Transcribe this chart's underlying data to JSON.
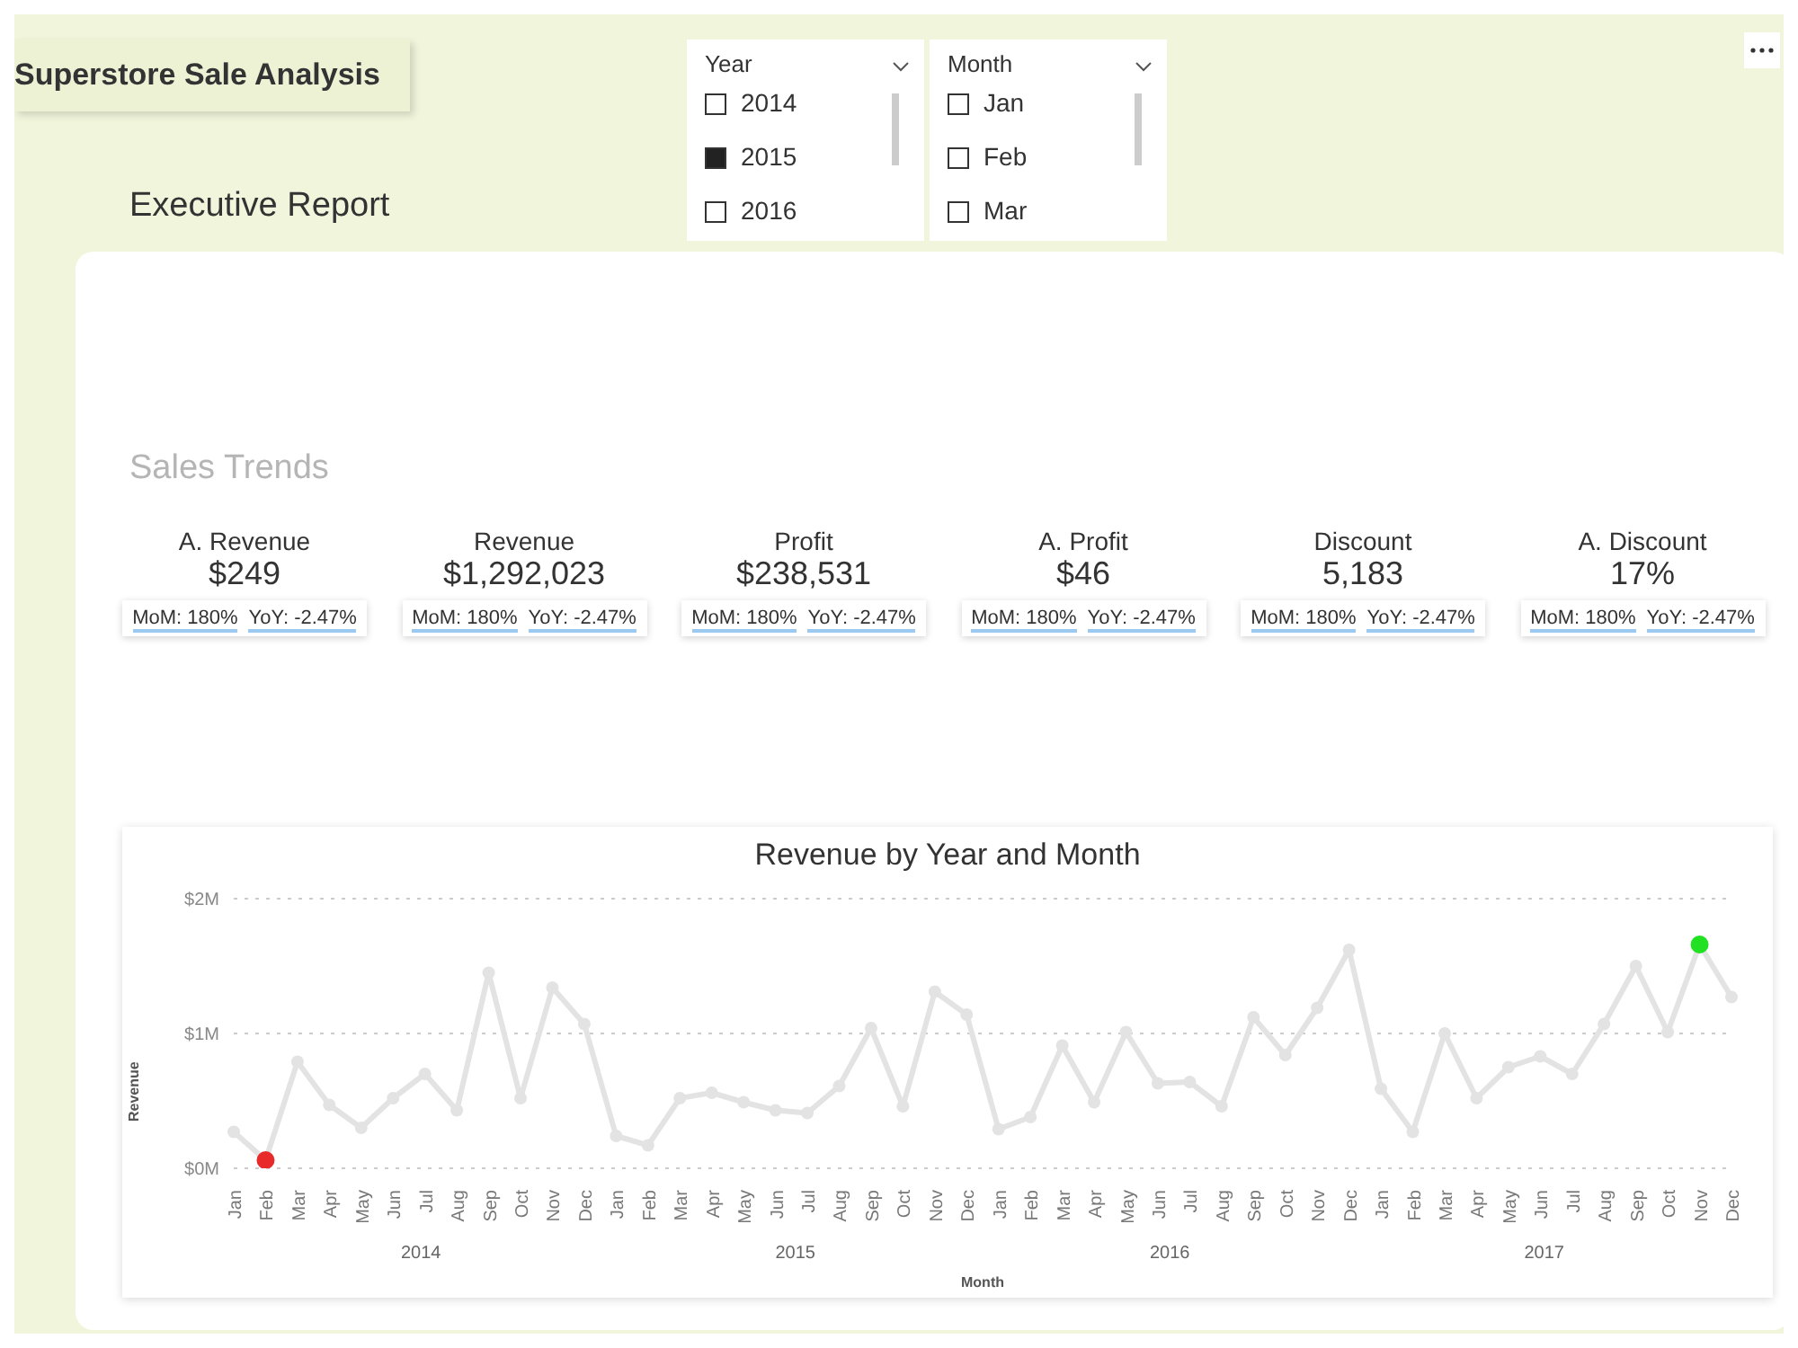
{
  "chart_data": {
    "type": "line",
    "title": "Revenue by Year and Month",
    "xlabel": "Month",
    "ylabel": "Revenue",
    "categories": [
      "Jan",
      "Feb",
      "Mar",
      "Apr",
      "May",
      "Jun",
      "Jul",
      "Aug",
      "Sep",
      "Oct",
      "Nov",
      "Dec",
      "Jan",
      "Feb",
      "Mar",
      "Apr",
      "May",
      "Jun",
      "Jul",
      "Aug",
      "Sep",
      "Oct",
      "Nov",
      "Dec",
      "Jan",
      "Feb",
      "Mar",
      "Apr",
      "May",
      "Jun",
      "Jul",
      "Aug",
      "Sep",
      "Oct",
      "Nov",
      "Dec",
      "Jan",
      "Feb",
      "Mar",
      "Apr",
      "May",
      "Jun",
      "Jul",
      "Aug",
      "Sep",
      "Oct",
      "Nov",
      "Dec"
    ],
    "series": [
      {
        "color": "#e3e3e3",
        "values": [
          0.27,
          0.06,
          0.79,
          0.47,
          0.3,
          0.52,
          0.7,
          0.43,
          1.45,
          0.52,
          1.34,
          1.07,
          0.24,
          0.17,
          0.52,
          0.56,
          0.49,
          0.43,
          0.41,
          0.61,
          1.04,
          0.46,
          1.31,
          1.14,
          0.29,
          0.38,
          0.91,
          0.49,
          1.01,
          0.63,
          0.64,
          0.46,
          1.12,
          0.84,
          1.19,
          1.62,
          0.59,
          0.27,
          1.0,
          0.52,
          0.75,
          0.83,
          0.7,
          1.07,
          1.5,
          1.01,
          1.66,
          1.27
        ],
        "colors": [
          "#e3e3e3",
          "#e82a2a",
          "#e3e3e3",
          "#e3e3e3",
          "#e3e3e3",
          "#e3e3e3",
          "#e3e3e3",
          "#e3e3e3",
          "#e3e3e3",
          "#e3e3e3",
          "#e3e3e3",
          "#e3e3e3",
          "#e3e3e3",
          "#e3e3e3",
          "#e3e3e3",
          "#e3e3e3",
          "#e3e3e3",
          "#e3e3e3",
          "#e3e3e3",
          "#e3e3e3",
          "#e3e3e3",
          "#e3e3e3",
          "#e3e3e3",
          "#e3e3e3",
          "#e3e3e3",
          "#e3e3e3",
          "#e3e3e3",
          "#e3e3e3",
          "#e3e3e3",
          "#e3e3e3",
          "#e3e3e3",
          "#e3e3e3",
          "#e3e3e3",
          "#e3e3e3",
          "#e3e3e3",
          "#e3e3e3",
          "#e3e3e3",
          "#e3e3e3",
          "#e3e3e3",
          "#e3e3e3",
          "#e3e3e3",
          "#e3e3e3",
          "#e3e3e3",
          "#e3e3e3",
          "#e3e3e3",
          "#e3e3e3",
          "#22e022",
          "#e3e3e3"
        ]
      }
    ],
    "ylim": [
      0,
      2
    ],
    "yticks": [
      {
        "value": 0,
        "label": "$0M"
      },
      {
        "value": 1,
        "label": "$1M"
      },
      {
        "value": 2,
        "label": "$2M"
      }
    ],
    "grid": "y",
    "legend": false,
    "marker": "circle",
    "line_style": "solid",
    "annotations": [
      "Superstore Sale Analysis",
      "Executive Report",
      "Sales Trends",
      "Year",
      "2014",
      "2015",
      "2016",
      "Month",
      "Jan",
      "Feb",
      "Mar",
      "A. Revenue",
      "$249",
      "MoM: 180%",
      "YoY: -2.47%",
      "Revenue",
      "$1,292,023",
      "MoM: 180%",
      "YoY: -2.47%",
      "Profit",
      "$238,531",
      "MoM: 180%",
      "YoY: -2.47%",
      "A. Profit",
      "$46",
      "MoM: 180%",
      "YoY: -2.47%",
      "Discount",
      "5,183",
      "MoM: 180%",
      "YoY: -2.47%",
      "A. Discount",
      "17%",
      "MoM: 180%",
      "YoY: -2.47%",
      "2014",
      "2015",
      "2016",
      "2017"
    ]
  }
}
